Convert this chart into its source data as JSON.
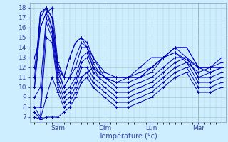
{
  "title": "",
  "xlabel": "Température (°c)",
  "ylabel": "",
  "bg_color": "#cceeff",
  "grid_color": "#aacccc",
  "line_color": "#0000bb",
  "tick_color": "#3344aa",
  "x_ticks": [
    24,
    72,
    120,
    168
  ],
  "x_tick_labels": [
    "Sam",
    "Dim",
    "Lun",
    "Mar"
  ],
  "ylim": [
    6.5,
    18.5
  ],
  "xlim": [
    -5,
    196
  ],
  "yticks": [
    7,
    8,
    9,
    10,
    11,
    12,
    13,
    14,
    15,
    16,
    17,
    18
  ],
  "series": [
    [
      0,
      13,
      3,
      14,
      6,
      17.5,
      12,
      18,
      18,
      17,
      24,
      12,
      30,
      11,
      36,
      13,
      42,
      14.5,
      48,
      15,
      54,
      14,
      60,
      13,
      72,
      11.5,
      84,
      11,
      96,
      11,
      108,
      11.5,
      120,
      12,
      132,
      13,
      144,
      14,
      156,
      14,
      168,
      12,
      180,
      12,
      192,
      13
    ],
    [
      0,
      12,
      3,
      14,
      6,
      16,
      12,
      17.5,
      18,
      18,
      24,
      12.5,
      30,
      11,
      36,
      11,
      48,
      11,
      60,
      12,
      72,
      11,
      84,
      11,
      96,
      11,
      108,
      11,
      120,
      12,
      132,
      13,
      144,
      14,
      168,
      12,
      180,
      12,
      192,
      12.5
    ],
    [
      0,
      11,
      6,
      17.5,
      12,
      18,
      18,
      17,
      24,
      12,
      30,
      11,
      36,
      13,
      42,
      14.5,
      48,
      15,
      54,
      14.5,
      60,
      13,
      66,
      12,
      72,
      11,
      84,
      11,
      96,
      11,
      108,
      12,
      120,
      13,
      132,
      13,
      144,
      14,
      156,
      14,
      168,
      12,
      180,
      11.5,
      192,
      12
    ],
    [
      0,
      10,
      6,
      17,
      12,
      18,
      18,
      16,
      24,
      12,
      30,
      10,
      36,
      11,
      42,
      13,
      48,
      14.5,
      54,
      14,
      60,
      12,
      72,
      11,
      84,
      10.5,
      96,
      11,
      108,
      11,
      120,
      11.5,
      132,
      13,
      144,
      13.5,
      168,
      12,
      180,
      12,
      192,
      12
    ],
    [
      0,
      10,
      6,
      16,
      12,
      17.5,
      18,
      16,
      24,
      11.5,
      30,
      10,
      36,
      11,
      42,
      12,
      48,
      14,
      54,
      14,
      60,
      12.5,
      66,
      11.5,
      72,
      11,
      84,
      10.5,
      96,
      10.5,
      108,
      11,
      120,
      12,
      132,
      13,
      144,
      13.5,
      168,
      11.5,
      180,
      12,
      192,
      12
    ],
    [
      0,
      9,
      6,
      10,
      12,
      17,
      18,
      15.5,
      24,
      11,
      30,
      9.5,
      36,
      10,
      42,
      11,
      48,
      13,
      54,
      13.5,
      60,
      12,
      66,
      11,
      72,
      11,
      84,
      10,
      96,
      10,
      108,
      10.5,
      120,
      11,
      132,
      12,
      144,
      13,
      156,
      13,
      168,
      11,
      180,
      11.5,
      192,
      12
    ],
    [
      0,
      8,
      6,
      8,
      12,
      16.5,
      18,
      15,
      24,
      10.5,
      30,
      9,
      36,
      9.5,
      42,
      10.5,
      48,
      12.5,
      54,
      13,
      60,
      11.5,
      72,
      10.5,
      84,
      9.5,
      96,
      9.5,
      108,
      10,
      120,
      10.5,
      132,
      11.5,
      144,
      12.5,
      156,
      13,
      168,
      11,
      180,
      11,
      192,
      11.5
    ],
    [
      0,
      8,
      6,
      7,
      12,
      15,
      18,
      14.5,
      24,
      10,
      30,
      8.5,
      36,
      9,
      42,
      10,
      48,
      12,
      54,
      12,
      60,
      11,
      72,
      10,
      84,
      9,
      96,
      9,
      108,
      9.5,
      120,
      10,
      132,
      11,
      144,
      12,
      156,
      12.5,
      168,
      10.5,
      180,
      10.5,
      192,
      11
    ],
    [
      0,
      7.5,
      6,
      6.8,
      12,
      9,
      18,
      11,
      24,
      9.5,
      30,
      8,
      36,
      8.5,
      42,
      9.5,
      48,
      11,
      54,
      11.5,
      60,
      10.5,
      66,
      10,
      72,
      9.5,
      84,
      8.5,
      96,
      8.5,
      108,
      9,
      120,
      9.5,
      132,
      10.5,
      144,
      11.5,
      156,
      12,
      168,
      10,
      180,
      10,
      192,
      10.5
    ],
    [
      0,
      7,
      6,
      6.8,
      12,
      7,
      18,
      7,
      24,
      7,
      30,
      7.5,
      36,
      8,
      42,
      9,
      48,
      10.5,
      54,
      11,
      60,
      10,
      72,
      9,
      84,
      8,
      96,
      8,
      108,
      8.5,
      120,
      9,
      132,
      10,
      144,
      11,
      156,
      11.5,
      168,
      9.5,
      180,
      9.5,
      192,
      10
    ]
  ]
}
